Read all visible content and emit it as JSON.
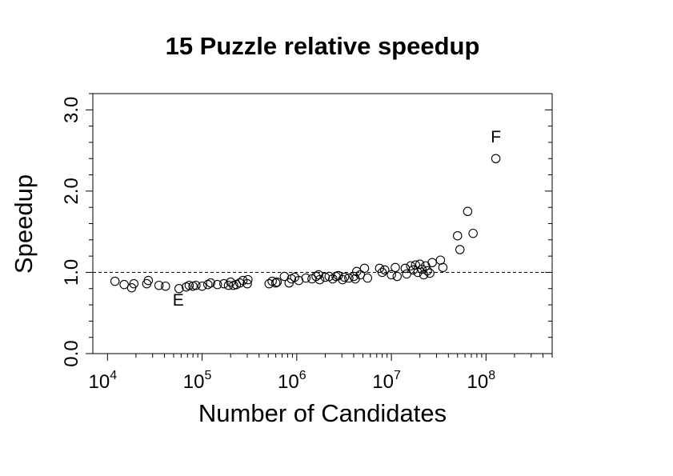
{
  "chart_data": {
    "type": "scatter",
    "title": "15 Puzzle relative speedup",
    "xlabel": "Number of Candidates",
    "ylabel": "Speedup",
    "x_scale": "log10",
    "xlim": [
      7000,
      500000000
    ],
    "ylim": [
      0.0,
      3.2
    ],
    "x_ticks": [
      {
        "base": "10",
        "exp": "4",
        "value": 10000
      },
      {
        "base": "10",
        "exp": "5",
        "value": 100000
      },
      {
        "base": "10",
        "exp": "6",
        "value": 1000000
      },
      {
        "base": "10",
        "exp": "7",
        "value": 10000000
      },
      {
        "base": "10",
        "exp": "8",
        "value": 100000000
      }
    ],
    "y_ticks": [
      {
        "label": "0.0",
        "value": 0.0
      },
      {
        "label": "1.0",
        "value": 1.0
      },
      {
        "label": "2.0",
        "value": 2.0
      },
      {
        "label": "3.0",
        "value": 3.0
      }
    ],
    "y_minor_ticks": [
      0.2,
      0.4,
      0.6,
      0.8,
      1.2,
      1.4,
      1.6,
      1.8,
      2.2,
      2.4,
      2.6,
      2.8,
      3.2
    ],
    "reference_line": {
      "y": 1.0,
      "style": "dashed"
    },
    "grid": false,
    "annotations": [
      {
        "text": "E",
        "x": 56000,
        "y": 0.59
      },
      {
        "text": "F",
        "x": 127000000,
        "y": 2.6
      }
    ],
    "points": [
      {
        "x": 12000,
        "y": 0.89
      },
      {
        "x": 15000,
        "y": 0.85
      },
      {
        "x": 18000,
        "y": 0.81
      },
      {
        "x": 19000,
        "y": 0.86
      },
      {
        "x": 26000,
        "y": 0.86
      },
      {
        "x": 27000,
        "y": 0.9
      },
      {
        "x": 35000,
        "y": 0.84
      },
      {
        "x": 41000,
        "y": 0.83
      },
      {
        "x": 57000,
        "y": 0.8
      },
      {
        "x": 68000,
        "y": 0.82
      },
      {
        "x": 73000,
        "y": 0.84
      },
      {
        "x": 80000,
        "y": 0.83
      },
      {
        "x": 86000,
        "y": 0.84
      },
      {
        "x": 100000,
        "y": 0.83
      },
      {
        "x": 115000,
        "y": 0.85
      },
      {
        "x": 123000,
        "y": 0.87
      },
      {
        "x": 145000,
        "y": 0.85
      },
      {
        "x": 170000,
        "y": 0.86
      },
      {
        "x": 190000,
        "y": 0.84
      },
      {
        "x": 200000,
        "y": 0.88
      },
      {
        "x": 215000,
        "y": 0.84
      },
      {
        "x": 230000,
        "y": 0.85
      },
      {
        "x": 250000,
        "y": 0.87
      },
      {
        "x": 270000,
        "y": 0.9
      },
      {
        "x": 300000,
        "y": 0.86
      },
      {
        "x": 305000,
        "y": 0.91
      },
      {
        "x": 510000,
        "y": 0.86
      },
      {
        "x": 550000,
        "y": 0.89
      },
      {
        "x": 600000,
        "y": 0.87
      },
      {
        "x": 620000,
        "y": 0.88
      },
      {
        "x": 740000,
        "y": 0.95
      },
      {
        "x": 830000,
        "y": 0.87
      },
      {
        "x": 880000,
        "y": 0.92
      },
      {
        "x": 950000,
        "y": 0.94
      },
      {
        "x": 1050000,
        "y": 0.9
      },
      {
        "x": 1250000,
        "y": 0.93
      },
      {
        "x": 1450000,
        "y": 0.92
      },
      {
        "x": 1600000,
        "y": 0.95
      },
      {
        "x": 1700000,
        "y": 0.97
      },
      {
        "x": 1750000,
        "y": 0.91
      },
      {
        "x": 2000000,
        "y": 0.94
      },
      {
        "x": 2200000,
        "y": 0.95
      },
      {
        "x": 2400000,
        "y": 0.92
      },
      {
        "x": 2600000,
        "y": 0.95
      },
      {
        "x": 2750000,
        "y": 0.96
      },
      {
        "x": 3050000,
        "y": 0.91
      },
      {
        "x": 3200000,
        "y": 0.94
      },
      {
        "x": 3550000,
        "y": 0.93
      },
      {
        "x": 4000000,
        "y": 0.95
      },
      {
        "x": 4150000,
        "y": 0.92
      },
      {
        "x": 4300000,
        "y": 1.01
      },
      {
        "x": 4700000,
        "y": 0.97
      },
      {
        "x": 5200000,
        "y": 1.05
      },
      {
        "x": 5600000,
        "y": 0.93
      },
      {
        "x": 7500000,
        "y": 1.05
      },
      {
        "x": 8000000,
        "y": 1.0
      },
      {
        "x": 8500000,
        "y": 1.03
      },
      {
        "x": 10000000,
        "y": 0.97
      },
      {
        "x": 11000000,
        "y": 1.06
      },
      {
        "x": 11500000,
        "y": 0.95
      },
      {
        "x": 14000000,
        "y": 1.05
      },
      {
        "x": 14500000,
        "y": 0.98
      },
      {
        "x": 16000000,
        "y": 1.08
      },
      {
        "x": 17000000,
        "y": 1.03
      },
      {
        "x": 18000000,
        "y": 1.09
      },
      {
        "x": 19000000,
        "y": 1.0
      },
      {
        "x": 20000000,
        "y": 1.1
      },
      {
        "x": 21000000,
        "y": 1.04
      },
      {
        "x": 22000000,
        "y": 0.97
      },
      {
        "x": 23000000,
        "y": 1.08
      },
      {
        "x": 24000000,
        "y": 1.02
      },
      {
        "x": 25500000,
        "y": 0.99
      },
      {
        "x": 27000000,
        "y": 1.12
      },
      {
        "x": 33000000,
        "y": 1.15
      },
      {
        "x": 35000000,
        "y": 1.06
      },
      {
        "x": 50000000,
        "y": 1.45
      },
      {
        "x": 53000000,
        "y": 1.28
      },
      {
        "x": 64000000,
        "y": 1.75
      },
      {
        "x": 73000000,
        "y": 1.48
      },
      {
        "x": 127000000,
        "y": 2.4
      }
    ]
  }
}
